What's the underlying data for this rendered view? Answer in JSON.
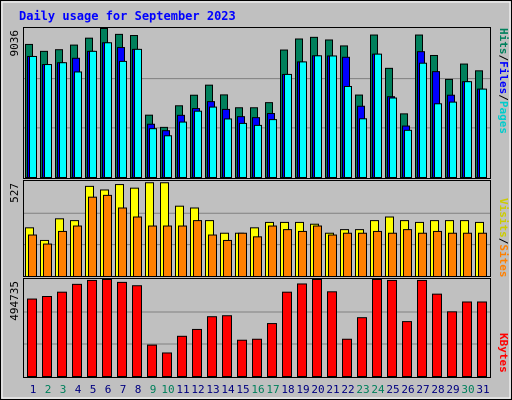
{
  "title": "Daily usage for September 2023",
  "colors": {
    "background": "#c0c0c0",
    "plot_bg": "#c0c0c0",
    "title": "#0000ff",
    "hits": "#00805c",
    "files": "#0000ff",
    "pages": "#00ffff",
    "visits": "#ffff00",
    "sites": "#ff8000",
    "kbytes": "#ff0000",
    "weekend_label": "#00805c",
    "weekday_label": "#000080"
  },
  "legend_top": {
    "pages": "Pages",
    "files": "Files",
    "hits": "Hits",
    "sep": "/"
  },
  "legend_mid": {
    "sites": "Sites",
    "visits": "Visits",
    "sep": "/"
  },
  "legend_bottom": {
    "kbytes": "KBytes"
  },
  "chart_data": [
    {
      "type": "bar",
      "title": "Daily usage for September 2023",
      "ylabel": "9036",
      "categories": [
        "1",
        "2",
        "3",
        "4",
        "5",
        "6",
        "7",
        "8",
        "9",
        "10",
        "11",
        "12",
        "13",
        "14",
        "15",
        "16",
        "17",
        "18",
        "19",
        "20",
        "21",
        "22",
        "23",
        "24",
        "25",
        "26",
        "27",
        "28",
        "29",
        "30",
        "31"
      ],
      "weekend_days": [
        "2",
        "3",
        "9",
        "10",
        "16",
        "17",
        "23",
        "24",
        "30"
      ],
      "ylim": [
        0,
        9036
      ],
      "series": [
        {
          "name": "Hits",
          "values": [
            8070,
            7650,
            7750,
            8030,
            8450,
            9040,
            8680,
            8610,
            3780,
            3040,
            4350,
            4990,
            5600,
            5010,
            4230,
            4230,
            4540,
            7730,
            8400,
            8500,
            8340,
            7980,
            5000,
            8640,
            6620,
            3860,
            8640,
            7400,
            5950,
            6880,
            6470
          ]
        },
        {
          "name": "Files",
          "values": [
            7340,
            6850,
            6960,
            7230,
            7650,
            8170,
            7880,
            7770,
            3230,
            2840,
            3770,
            4180,
            4600,
            4130,
            3690,
            3630,
            3880,
            6250,
            7010,
            7380,
            7370,
            7290,
            4320,
            7480,
            4900,
            3120,
            7630,
            6420,
            4990,
            5810,
            5360
          ]
        },
        {
          "name": "Pages",
          "values": [
            7340,
            6850,
            6960,
            6400,
            7650,
            8170,
            7040,
            7770,
            2960,
            2530,
            3360,
            4020,
            4270,
            3550,
            3280,
            3160,
            3510,
            6250,
            7010,
            7380,
            7370,
            5520,
            3560,
            7480,
            4820,
            2860,
            6930,
            4470,
            4570,
            5810,
            5360
          ]
        }
      ]
    },
    {
      "type": "bar",
      "ylabel": "527",
      "categories": [
        "1",
        "2",
        "3",
        "4",
        "5",
        "6",
        "7",
        "8",
        "9",
        "10",
        "11",
        "12",
        "13",
        "14",
        "15",
        "16",
        "17",
        "18",
        "19",
        "20",
        "21",
        "22",
        "23",
        "24",
        "25",
        "26",
        "27",
        "28",
        "29",
        "30",
        "31"
      ],
      "ylim": [
        0,
        527
      ],
      "series": [
        {
          "name": "Visits",
          "values": [
            270,
            200,
            320,
            310,
            500,
            480,
            510,
            490,
            520,
            520,
            390,
            380,
            310,
            240,
            240,
            270,
            300,
            300,
            300,
            290,
            240,
            260,
            260,
            310,
            330,
            310,
            300,
            310,
            310,
            310,
            300
          ]
        },
        {
          "name": "Sites",
          "values": [
            230,
            180,
            250,
            280,
            440,
            450,
            380,
            330,
            280,
            280,
            280,
            310,
            230,
            200,
            240,
            220,
            280,
            260,
            250,
            280,
            230,
            240,
            240,
            250,
            240,
            260,
            240,
            250,
            240,
            240,
            240
          ]
        }
      ]
    },
    {
      "type": "bar",
      "ylabel": "494735",
      "categories": [
        "1",
        "2",
        "3",
        "4",
        "5",
        "6",
        "7",
        "8",
        "9",
        "10",
        "11",
        "12",
        "13",
        "14",
        "15",
        "16",
        "17",
        "18",
        "19",
        "20",
        "21",
        "22",
        "23",
        "24",
        "25",
        "26",
        "27",
        "28",
        "29",
        "30",
        "31"
      ],
      "ylim": [
        0,
        494735
      ],
      "series": [
        {
          "name": "KBytes",
          "values": [
            395000,
            408000,
            430000,
            470000,
            490000,
            497000,
            480000,
            463000,
            160000,
            120000,
            205000,
            240000,
            305000,
            310000,
            185000,
            190000,
            270000,
            430000,
            472000,
            510000,
            432000,
            190000,
            300000,
            510000,
            490000,
            280000,
            490000,
            420000,
            330000,
            380000,
            380000
          ]
        }
      ]
    }
  ]
}
